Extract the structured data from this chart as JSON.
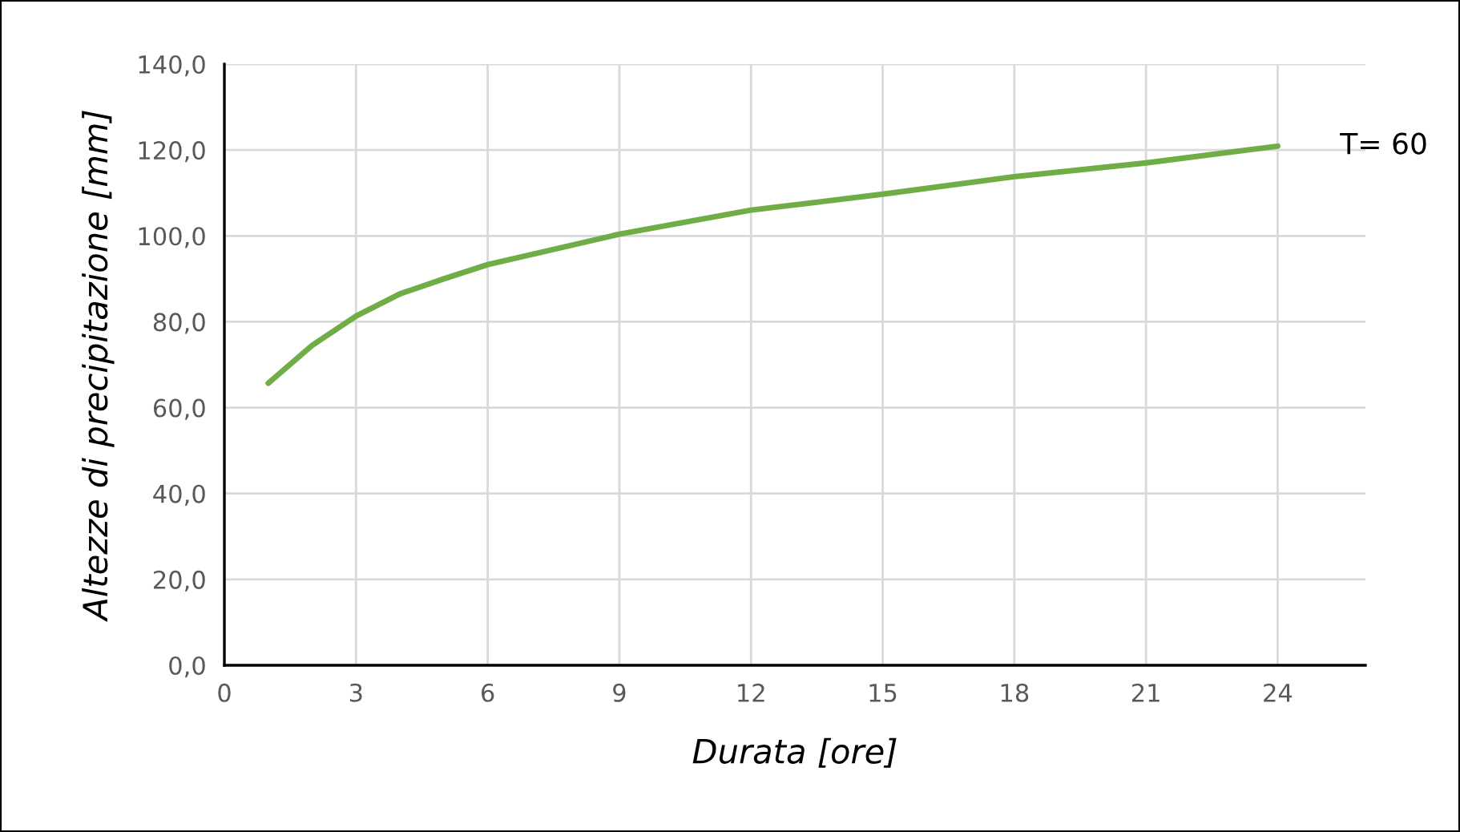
{
  "chart_data": {
    "type": "line",
    "xlabel": "Durata [ore]",
    "ylabel": "Altezze di precipitazione [mm]",
    "series": [
      {
        "name": "T= 60",
        "color": "#70ad47",
        "x": [
          1,
          2,
          3,
          4,
          5,
          6,
          9,
          12,
          15,
          18,
          21,
          24
        ],
        "values": [
          65.7,
          74.5,
          81.3,
          86.5,
          90.0,
          93.3,
          100.4,
          106.0,
          109.7,
          113.8,
          117.0,
          120.9
        ]
      }
    ],
    "xlim": [
      0,
      26
    ],
    "xticks": [
      0,
      3,
      6,
      9,
      12,
      15,
      18,
      21,
      24
    ],
    "ylim": [
      0,
      140
    ],
    "yticks": [
      {
        "value": 0,
        "label": "0,0"
      },
      {
        "value": 20,
        "label": "20,0"
      },
      {
        "value": 40,
        "label": "40,0"
      },
      {
        "value": 60,
        "label": "60,0"
      },
      {
        "value": 80,
        "label": "80,0"
      },
      {
        "value": 100,
        "label": "100,0"
      },
      {
        "value": 120,
        "label": "120,0"
      },
      {
        "value": 140,
        "label": "140,0"
      }
    ],
    "grid": true,
    "legend": false,
    "marker": "none",
    "line_style": "solid"
  }
}
